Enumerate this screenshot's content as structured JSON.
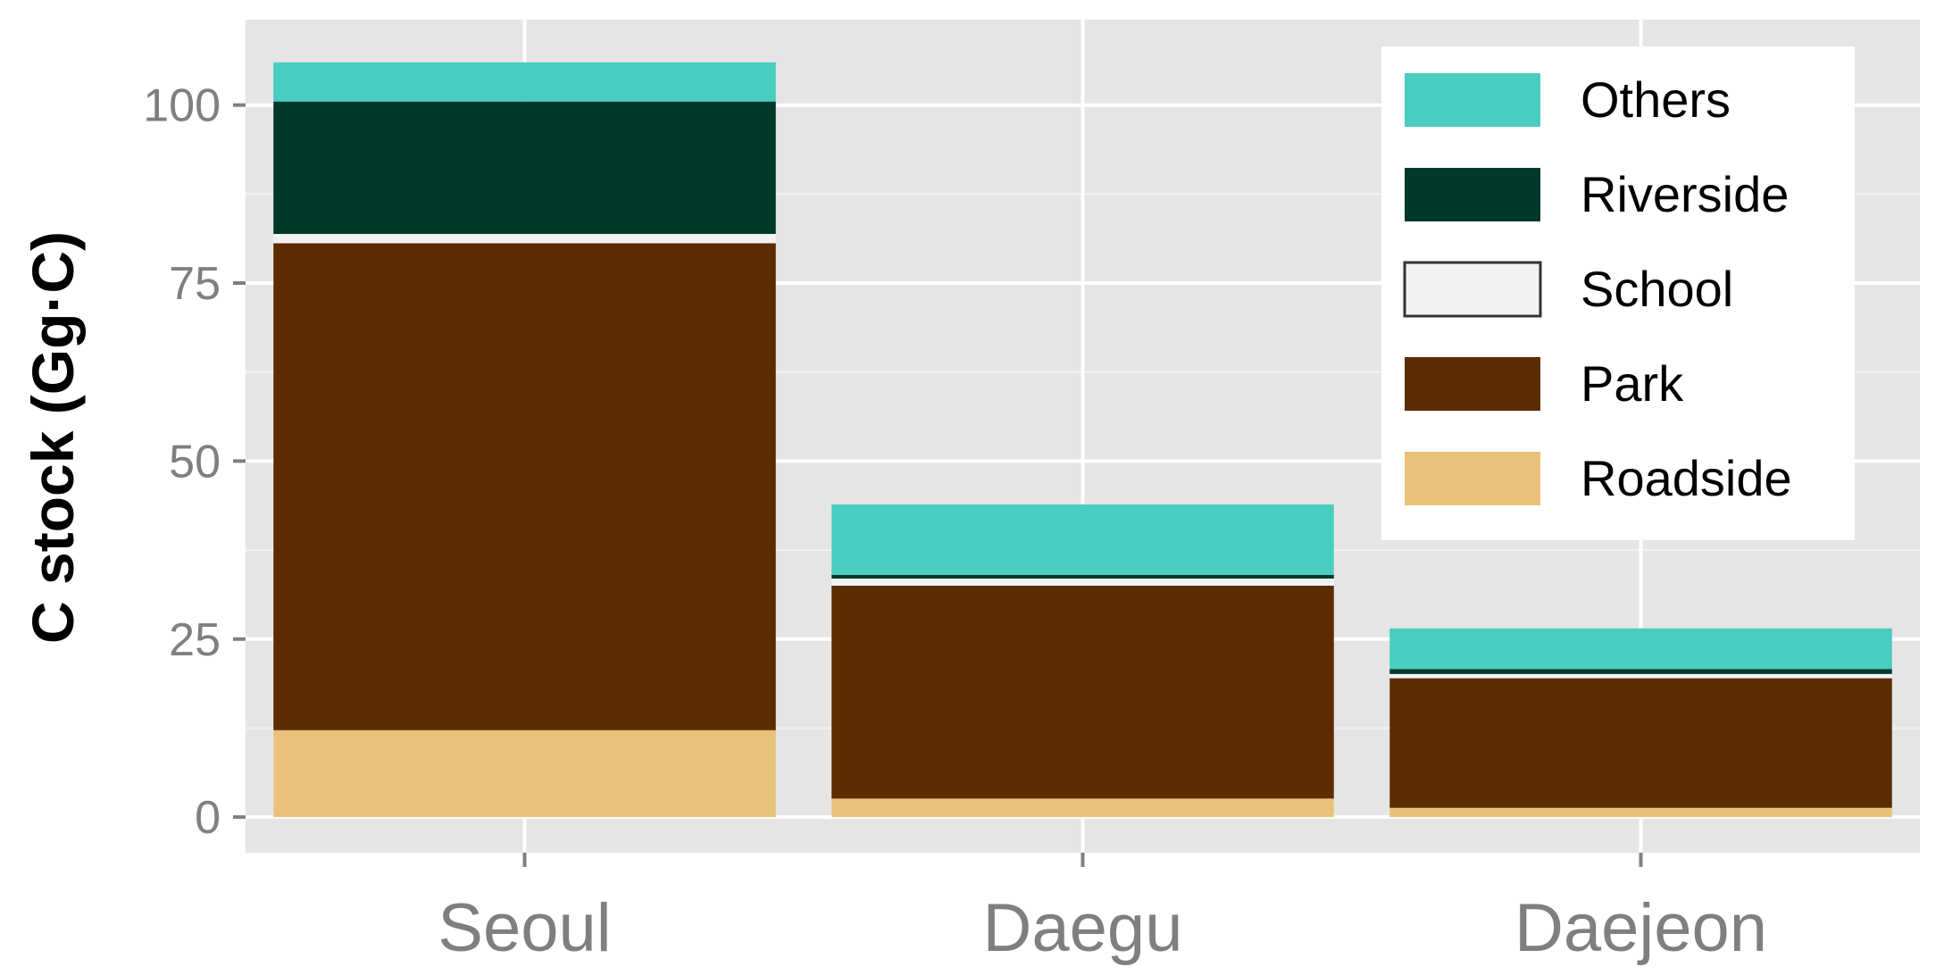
{
  "chart_data": {
    "type": "bar",
    "stacked": true,
    "title": "",
    "xlabel": "",
    "ylabel": "C stock (Gg·C)",
    "ylim": [
      -5,
      112
    ],
    "yticks": [
      0,
      25,
      50,
      75,
      100
    ],
    "ytick_labels": [
      "0",
      "25",
      "50",
      "75",
      "100"
    ],
    "categories": [
      "Seoul",
      "Daegu",
      "Daejeon"
    ],
    "series": [
      {
        "name": "Roadside",
        "color": "#E9C27A",
        "values": [
          12.2,
          2.6,
          1.3
        ]
      },
      {
        "name": "Park",
        "color": "#5C2C00",
        "values": [
          68.4,
          29.9,
          18.2
        ]
      },
      {
        "name": "School",
        "color": "#F2F2F2",
        "values": [
          1.3,
          1.0,
          0.6
        ]
      },
      {
        "name": "Riverside",
        "color": "#00382C",
        "values": [
          18.6,
          0.5,
          0.7
        ]
      },
      {
        "name": "Others",
        "color": "#48CDC0",
        "values": [
          5.5,
          9.9,
          5.7
        ]
      }
    ],
    "legend": {
      "position": "top-right",
      "order": [
        "Others",
        "Riverside",
        "School",
        "Park",
        "Roadside"
      ]
    },
    "grid": true,
    "panel_background": "#E5E5E5",
    "grid_color": "#FFFFFF"
  }
}
